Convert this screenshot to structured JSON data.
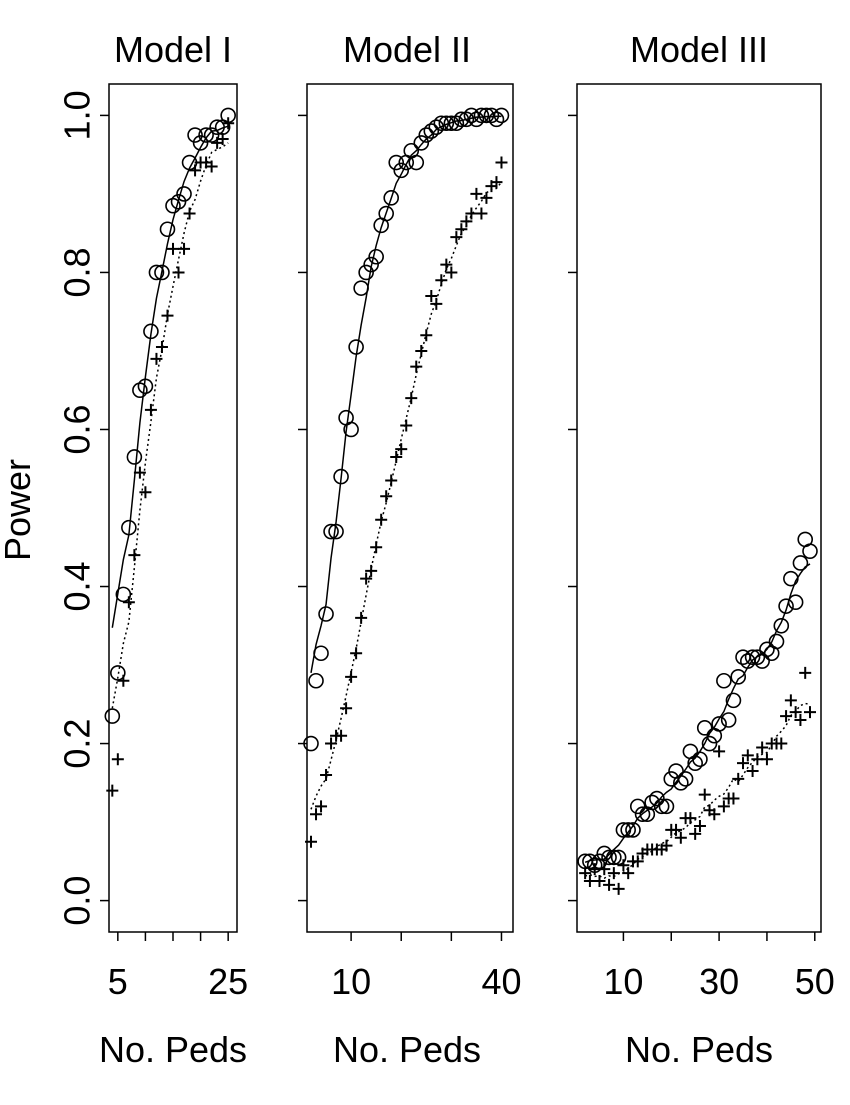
{
  "figure": {
    "ylabel": "Power",
    "y_ticks": [
      0.0,
      0.2,
      0.4,
      0.6,
      0.8,
      1.0
    ],
    "y_tick_labels": [
      "0.0",
      "0.2",
      "0.4",
      "0.6",
      "0.8",
      "1.0"
    ]
  },
  "chart_data": [
    {
      "type": "scatter",
      "title": "Model I",
      "xlabel": "No. Peds",
      "ylabel": "Power",
      "xlim": [
        3.4,
        26.6
      ],
      "ylim": [
        -0.04,
        1.04
      ],
      "x_ticks": [
        5,
        10,
        15,
        20,
        25
      ],
      "x_tick_labels": [
        "5",
        "",
        "",
        "",
        "25"
      ],
      "series": [
        {
          "name": "circles (solid line)",
          "marker": "circle",
          "line": "solid",
          "x": [
            4,
            5,
            6,
            7,
            8,
            9,
            10,
            11,
            12,
            13,
            14,
            15,
            16,
            17,
            18,
            19,
            20,
            21,
            22,
            23,
            24,
            25
          ],
          "y": [
            0.235,
            0.29,
            0.39,
            0.475,
            0.565,
            0.65,
            0.655,
            0.725,
            0.8,
            0.8,
            0.855,
            0.885,
            0.89,
            0.9,
            0.94,
            0.975,
            0.965,
            0.975,
            0.975,
            0.985,
            0.985,
            1.0
          ]
        },
        {
          "name": "plus (dotted line)",
          "marker": "plus",
          "line": "dotted",
          "x": [
            4,
            5,
            6,
            7,
            8,
            9,
            10,
            11,
            12,
            13,
            14,
            15,
            16,
            17,
            18,
            19,
            20,
            21,
            22,
            23,
            24,
            25
          ],
          "y": [
            0.14,
            0.18,
            0.28,
            0.38,
            0.44,
            0.545,
            0.52,
            0.625,
            0.69,
            0.705,
            0.745,
            0.83,
            0.8,
            0.83,
            0.875,
            0.93,
            0.94,
            0.94,
            0.935,
            0.965,
            0.97,
            0.99
          ]
        }
      ]
    },
    {
      "type": "scatter",
      "title": "Model II",
      "xlabel": "No. Peds",
      "ylabel": "Power",
      "xlim": [
        1.2,
        42.3
      ],
      "ylim": [
        -0.04,
        1.04
      ],
      "x_ticks": [
        10,
        20,
        30,
        40
      ],
      "x_tick_labels": [
        "10",
        "",
        "",
        "40"
      ],
      "series": [
        {
          "name": "circles (solid line)",
          "marker": "circle",
          "line": "solid",
          "x": [
            2,
            3,
            4,
            5,
            6,
            7,
            8,
            9,
            10,
            11,
            12,
            13,
            14,
            15,
            16,
            17,
            18,
            19,
            20,
            21,
            22,
            23,
            24,
            25,
            26,
            27,
            28,
            29,
            30,
            31,
            32,
            33,
            34,
            35,
            36,
            37,
            38,
            39,
            40
          ],
          "y": [
            0.2,
            0.28,
            0.315,
            0.365,
            0.47,
            0.47,
            0.54,
            0.615,
            0.6,
            0.705,
            0.78,
            0.8,
            0.81,
            0.82,
            0.86,
            0.875,
            0.895,
            0.94,
            0.93,
            0.94,
            0.955,
            0.94,
            0.965,
            0.975,
            0.98,
            0.985,
            0.99,
            0.99,
            0.99,
            0.99,
            0.995,
            0.995,
            1.0,
            0.995,
            1.0,
            1.0,
            1.0,
            0.995,
            1.0
          ]
        },
        {
          "name": "plus (dotted line)",
          "marker": "plus",
          "line": "dotted",
          "x": [
            2,
            3,
            4,
            5,
            6,
            7,
            8,
            9,
            10,
            11,
            12,
            13,
            14,
            15,
            16,
            17,
            18,
            19,
            20,
            21,
            22,
            23,
            24,
            25,
            26,
            27,
            28,
            29,
            30,
            31,
            32,
            33,
            34,
            35,
            36,
            37,
            38,
            39,
            40
          ],
          "y": [
            0.075,
            0.11,
            0.12,
            0.16,
            0.2,
            0.21,
            0.21,
            0.245,
            0.285,
            0.315,
            0.36,
            0.41,
            0.42,
            0.45,
            0.485,
            0.515,
            0.535,
            0.565,
            0.575,
            0.605,
            0.64,
            0.68,
            0.7,
            0.72,
            0.77,
            0.76,
            0.79,
            0.81,
            0.8,
            0.845,
            0.855,
            0.865,
            0.875,
            0.9,
            0.875,
            0.895,
            0.91,
            0.915,
            0.94
          ]
        }
      ]
    },
    {
      "type": "scatter",
      "title": "Model III",
      "xlabel": "No. Peds",
      "ylabel": "Power",
      "xlim": [
        0.3,
        51.3
      ],
      "ylim": [
        -0.04,
        1.04
      ],
      "x_ticks": [
        10,
        20,
        30,
        40,
        50
      ],
      "x_tick_labels": [
        "10",
        "",
        "30",
        "",
        "50"
      ],
      "series": [
        {
          "name": "circles (solid line)",
          "marker": "circle",
          "line": "solid",
          "x": [
            2,
            3,
            4,
            5,
            6,
            7,
            8,
            9,
            10,
            11,
            12,
            13,
            14,
            15,
            16,
            17,
            18,
            19,
            20,
            21,
            22,
            23,
            24,
            25,
            26,
            27,
            28,
            29,
            30,
            31,
            32,
            33,
            34,
            35,
            36,
            37,
            38,
            39,
            40,
            41,
            42,
            43,
            44,
            45,
            46,
            47,
            48,
            49
          ],
          "y": [
            0.05,
            0.05,
            0.045,
            0.05,
            0.06,
            0.055,
            0.055,
            0.055,
            0.09,
            0.09,
            0.09,
            0.12,
            0.11,
            0.11,
            0.125,
            0.13,
            0.12,
            0.12,
            0.155,
            0.165,
            0.15,
            0.155,
            0.19,
            0.175,
            0.18,
            0.22,
            0.2,
            0.21,
            0.225,
            0.28,
            0.23,
            0.255,
            0.285,
            0.31,
            0.305,
            0.31,
            0.31,
            0.305,
            0.32,
            0.315,
            0.33,
            0.35,
            0.375,
            0.41,
            0.38,
            0.43,
            0.46,
            0.445
          ]
        },
        {
          "name": "plus (dotted line)",
          "marker": "plus",
          "line": "dotted",
          "x": [
            2,
            3,
            4,
            5,
            6,
            7,
            8,
            9,
            10,
            11,
            12,
            13,
            14,
            15,
            16,
            17,
            18,
            19,
            20,
            21,
            22,
            23,
            24,
            25,
            26,
            27,
            28,
            29,
            30,
            31,
            32,
            33,
            34,
            35,
            36,
            37,
            38,
            39,
            40,
            41,
            42,
            43,
            44,
            45,
            46,
            47,
            48,
            49
          ],
          "y": [
            0.035,
            0.025,
            0.04,
            0.025,
            0.04,
            0.02,
            0.035,
            0.015,
            0.045,
            0.035,
            0.05,
            0.05,
            0.06,
            0.065,
            0.065,
            0.065,
            0.065,
            0.07,
            0.09,
            0.09,
            0.08,
            0.105,
            0.105,
            0.085,
            0.095,
            0.135,
            0.115,
            0.11,
            0.19,
            0.12,
            0.13,
            0.13,
            0.155,
            0.175,
            0.185,
            0.165,
            0.18,
            0.195,
            0.18,
            0.2,
            0.2,
            0.2,
            0.235,
            0.255,
            0.24,
            0.23,
            0.29,
            0.24
          ]
        }
      ]
    }
  ]
}
